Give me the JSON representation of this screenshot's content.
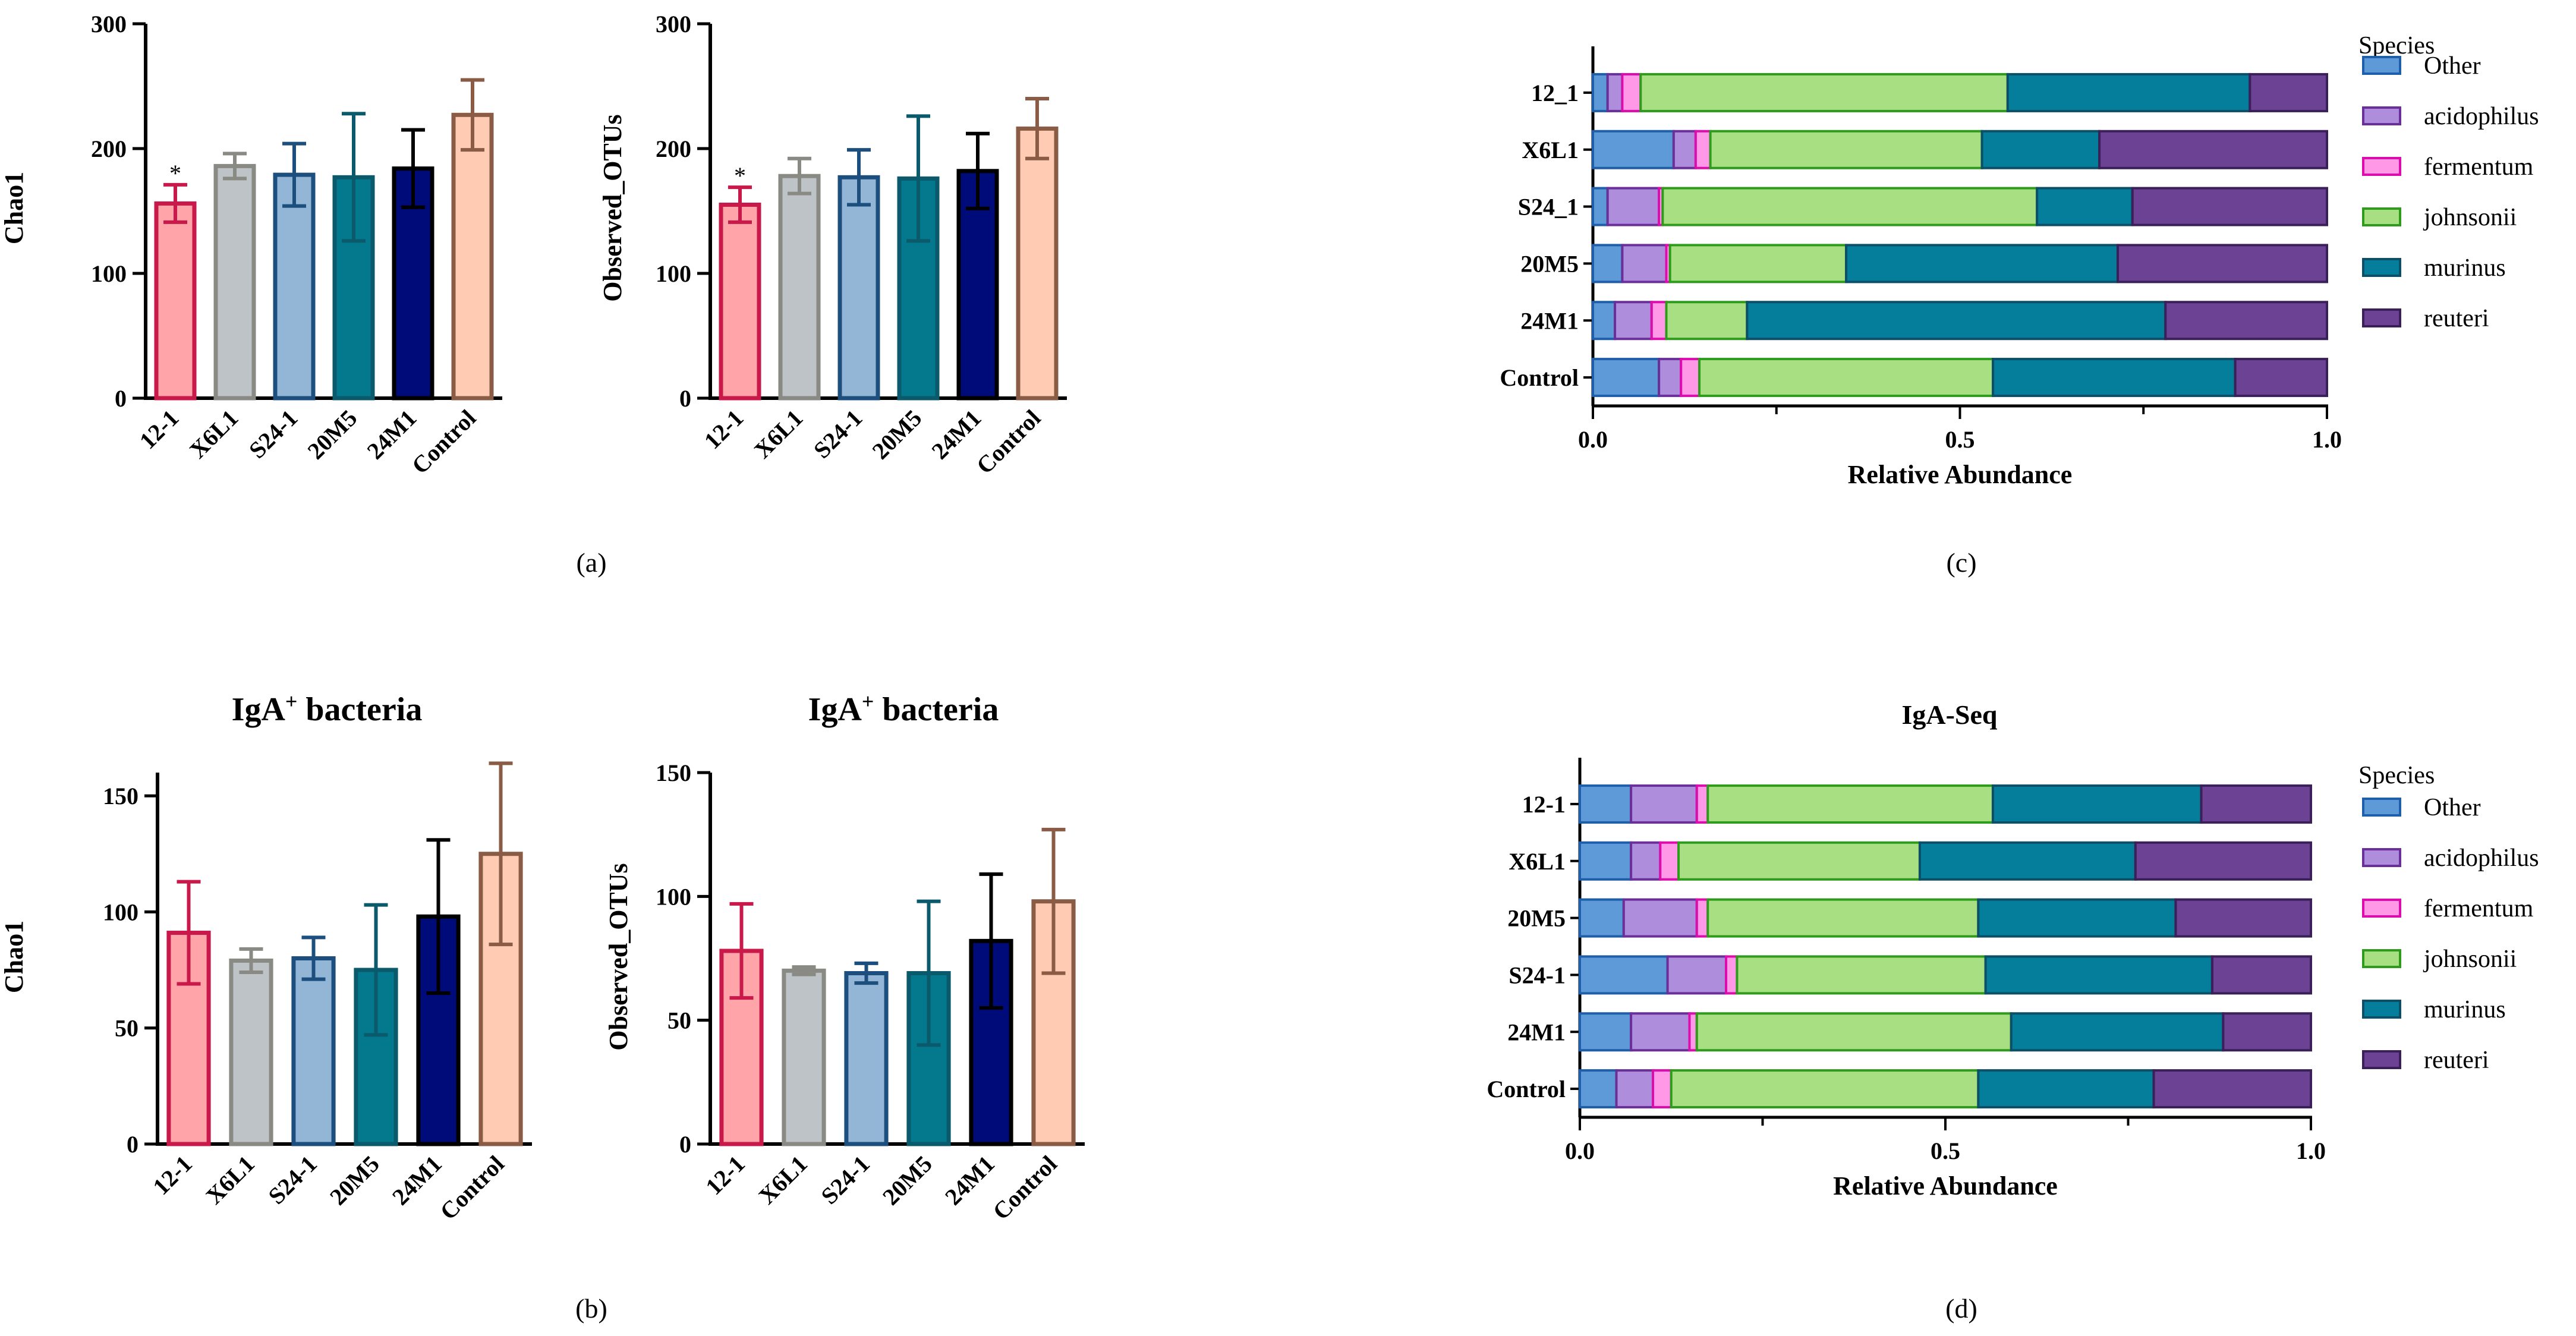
{
  "figure_labels": {
    "a": "(a)",
    "b": "(b)",
    "c": "(c)",
    "d": "(d)"
  },
  "panel_titles": {
    "b1_main": "IgA",
    "b1_sup": "+",
    "b1_rest": " bacteria",
    "b2_main": "IgA",
    "b2_sup": "+",
    "b2_rest": " bacteria",
    "d": "IgA-Seq"
  },
  "legend": {
    "title": "Species",
    "entries": [
      "Other",
      "acidophilus",
      "fermentum",
      "johnsonii",
      "murinus",
      "reuteri"
    ]
  },
  "colors": {
    "bar_fills": [
      "#ffa4a9",
      "#bdc3c7",
      "#94b6d6",
      "#04788c",
      "#000b7a",
      "#ffcbb3"
    ],
    "bar_strokes": [
      "#c8194a",
      "#8a8a85",
      "#1c4f7d",
      "#0b5a6b",
      "#000000",
      "#8a5b45"
    ],
    "species_fills": [
      "#5d9ad7",
      "#ad8ddc",
      "#ff99e7",
      "#a8df82",
      "#047e9b",
      "#6c4394"
    ],
    "species_strokes": [
      "#1f5ea8",
      "#6a2f98",
      "#dc0cad",
      "#2f9b1c",
      "#0d4f66",
      "#3a1f58"
    ]
  },
  "chart_data": [
    {
      "id": "a1",
      "type": "bar",
      "title": "",
      "categories": [
        "12-1",
        "X6L1",
        "S24-1",
        "20M5",
        "24M1",
        "Control"
      ],
      "values": [
        156,
        186,
        179,
        177,
        184,
        227
      ],
      "errors": [
        15,
        10,
        25,
        51,
        31,
        28
      ],
      "significance": [
        "*",
        "",
        "",
        "",
        "",
        ""
      ],
      "ylabel": "Chao1",
      "xlabel": "",
      "ylim": [
        0,
        300
      ],
      "yticks": [
        "0",
        "100",
        "200",
        "300"
      ]
    },
    {
      "id": "a2",
      "type": "bar",
      "title": "",
      "categories": [
        "12-1",
        "X6L1",
        "S24-1",
        "20M5",
        "24M1",
        "Control"
      ],
      "values": [
        155,
        178,
        177,
        176,
        182,
        216
      ],
      "errors": [
        14,
        14,
        22,
        50,
        30,
        24
      ],
      "significance": [
        "*",
        "",
        "",
        "",
        "",
        ""
      ],
      "ylabel": "Observed_OTUs",
      "xlabel": "",
      "ylim": [
        0,
        300
      ],
      "yticks": [
        "0",
        "100",
        "200",
        "300"
      ]
    },
    {
      "id": "b1",
      "type": "bar",
      "title": "IgA+ bacteria",
      "categories": [
        "12-1",
        "X6L1",
        "S24-1",
        "20M5",
        "24M1",
        "Control"
      ],
      "values": [
        91,
        79,
        80,
        75,
        98,
        125
      ],
      "errors": [
        22,
        5,
        9,
        28,
        33,
        39
      ],
      "significance": [
        "",
        "",
        "",
        "",
        "",
        ""
      ],
      "ylabel": "Chao1",
      "xlabel": "",
      "ylim": [
        0,
        160
      ],
      "yticks": [
        "0",
        "50",
        "100",
        "150"
      ]
    },
    {
      "id": "b2",
      "type": "bar",
      "title": "IgA+ bacteria",
      "categories": [
        "12-1",
        "X6L1",
        "S24-1",
        "20M5",
        "24M1",
        "Control"
      ],
      "values": [
        78,
        70,
        69,
        69,
        82,
        98
      ],
      "errors": [
        19,
        1.5,
        4,
        29,
        27,
        29
      ],
      "significance": [
        "",
        "",
        "",
        "",
        "",
        ""
      ],
      "ylabel": "Observed_OTUs",
      "xlabel": "",
      "ylim": [
        0,
        150
      ],
      "yticks": [
        "0",
        "50",
        "100",
        "150"
      ]
    },
    {
      "id": "c",
      "type": "bar",
      "orientation": "horizontal-stacked",
      "title": "",
      "categories": [
        "12_1",
        "X6L1",
        "S24_1",
        "20M5",
        "24M1",
        "Control"
      ],
      "series": [
        {
          "name": "Other",
          "values": [
            0.02,
            0.11,
            0.02,
            0.04,
            0.03,
            0.09
          ]
        },
        {
          "name": "acidophilus",
          "values": [
            0.02,
            0.03,
            0.07,
            0.06,
            0.05,
            0.03
          ]
        },
        {
          "name": "fermentum",
          "values": [
            0.025,
            0.02,
            0.005,
            0.005,
            0.02,
            0.025
          ]
        },
        {
          "name": "johnsonii",
          "values": [
            0.5,
            0.37,
            0.51,
            0.24,
            0.11,
            0.4
          ]
        },
        {
          "name": "murinus",
          "values": [
            0.33,
            0.16,
            0.13,
            0.37,
            0.57,
            0.33
          ]
        },
        {
          "name": "reuteri",
          "values": [
            0.105,
            0.31,
            0.265,
            0.285,
            0.22,
            0.125
          ]
        }
      ],
      "xlabel": "Relative Abundance",
      "ylabel": "",
      "xlim": [
        0,
        1
      ],
      "xticks": [
        "0.0",
        "0.5",
        "1.0"
      ],
      "legend": "right"
    },
    {
      "id": "d",
      "type": "bar",
      "orientation": "horizontal-stacked",
      "title": "IgA-Seq",
      "categories": [
        "12-1",
        "X6L1",
        "20M5",
        "S24-1",
        "24M1",
        "Control"
      ],
      "series": [
        {
          "name": "Other",
          "values": [
            0.07,
            0.07,
            0.06,
            0.12,
            0.07,
            0.05
          ]
        },
        {
          "name": "acidophilus",
          "values": [
            0.09,
            0.04,
            0.1,
            0.08,
            0.08,
            0.05
          ]
        },
        {
          "name": "fermentum",
          "values": [
            0.015,
            0.025,
            0.015,
            0.015,
            0.01,
            0.025
          ]
        },
        {
          "name": "johnsonii",
          "values": [
            0.39,
            0.33,
            0.37,
            0.34,
            0.43,
            0.42
          ]
        },
        {
          "name": "murinus",
          "values": [
            0.285,
            0.295,
            0.27,
            0.31,
            0.29,
            0.24
          ]
        },
        {
          "name": "reuteri",
          "values": [
            0.15,
            0.24,
            0.185,
            0.135,
            0.12,
            0.215
          ]
        }
      ],
      "xlabel": "Relative Abundance",
      "ylabel": "",
      "xlim": [
        0,
        1
      ],
      "xticks": [
        "0.0",
        "0.5",
        "1.0"
      ],
      "legend": "right"
    }
  ]
}
